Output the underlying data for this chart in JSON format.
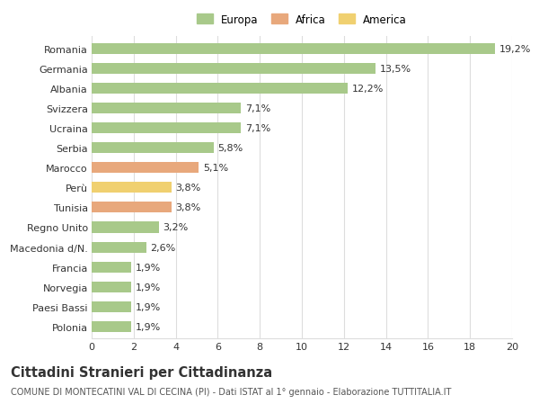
{
  "categories": [
    "Polonia",
    "Paesi Bassi",
    "Norvegia",
    "Francia",
    "Macedonia d/N.",
    "Regno Unito",
    "Tunisia",
    "Perù",
    "Marocco",
    "Serbia",
    "Ucraina",
    "Svizzera",
    "Albania",
    "Germania",
    "Romania"
  ],
  "values": [
    1.9,
    1.9,
    1.9,
    1.9,
    2.6,
    3.2,
    3.8,
    3.8,
    5.1,
    5.8,
    7.1,
    7.1,
    12.2,
    13.5,
    19.2
  ],
  "labels": [
    "1,9%",
    "1,9%",
    "1,9%",
    "1,9%",
    "2,6%",
    "3,2%",
    "3,8%",
    "3,8%",
    "5,1%",
    "5,8%",
    "7,1%",
    "7,1%",
    "12,2%",
    "13,5%",
    "19,2%"
  ],
  "colors": [
    "#a8c98a",
    "#a8c98a",
    "#a8c98a",
    "#a8c98a",
    "#a8c98a",
    "#a8c98a",
    "#e8a87c",
    "#f0d070",
    "#e8a87c",
    "#a8c98a",
    "#a8c98a",
    "#a8c98a",
    "#a8c98a",
    "#a8c98a",
    "#a8c98a"
  ],
  "legend_labels": [
    "Europa",
    "Africa",
    "America"
  ],
  "legend_colors": [
    "#a8c98a",
    "#e8a87c",
    "#f0d070"
  ],
  "title": "Cittadini Stranieri per Cittadinanza",
  "subtitle": "COMUNE DI MONTECATINI VAL DI CECINA (PI) - Dati ISTAT al 1° gennaio - Elaborazione TUTTITALIA.IT",
  "xlim": [
    0,
    20
  ],
  "xticks": [
    0,
    2,
    4,
    6,
    8,
    10,
    12,
    14,
    16,
    18,
    20
  ],
  "background_color": "#ffffff",
  "bar_height": 0.55,
  "grid_color": "#dddddd",
  "text_color": "#333333",
  "label_fontsize": 8,
  "tick_fontsize": 8,
  "title_fontsize": 10.5,
  "subtitle_fontsize": 7
}
